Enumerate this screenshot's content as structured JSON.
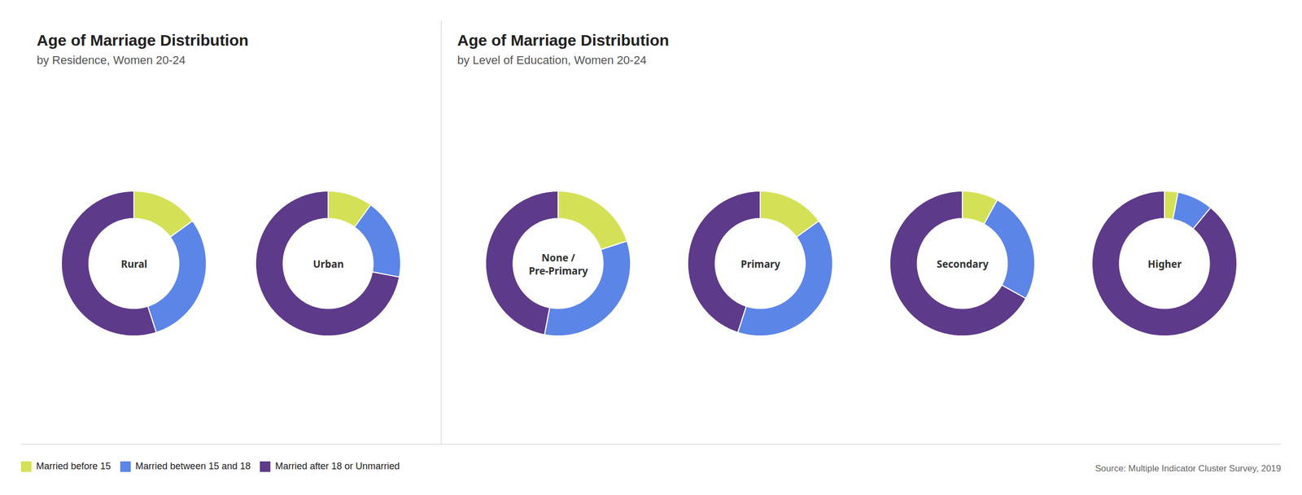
{
  "chart_data": [
    {
      "type": "donut",
      "title": "Age of Marriage Distribution",
      "subtitle": "by Residence, Women 20-24",
      "categories": [
        "Married before 15",
        "Married between 15 and 18",
        "Married after 18 or Unmarried"
      ],
      "colors": [
        "#d4e157",
        "#5c85e8",
        "#5e3a8a"
      ],
      "series": [
        {
          "name": "Rural",
          "values": [
            15,
            30,
            55
          ]
        },
        {
          "name": "Urban",
          "values": [
            10,
            18,
            72
          ]
        }
      ],
      "legend": "bottom"
    },
    {
      "type": "donut",
      "title": "Age of Marriage Distribution",
      "subtitle": "by Level of Education, Women 20-24",
      "categories": [
        "Married before 15",
        "Married between 15 and 18",
        "Married after 18 or Unmarried"
      ],
      "colors": [
        "#d4e157",
        "#5c85e8",
        "#5e3a8a"
      ],
      "series": [
        {
          "name": "None /\nPre-Primary",
          "values": [
            20,
            33,
            47
          ]
        },
        {
          "name": "Primary",
          "values": [
            15,
            40,
            45
          ]
        },
        {
          "name": "Secondary",
          "values": [
            8,
            25,
            67
          ]
        },
        {
          "name": "Higher",
          "values": [
            3,
            8,
            89
          ]
        }
      ],
      "annotations": [
        "Source: Multiple Indicator Cluster Survey, 2019"
      ]
    }
  ]
}
